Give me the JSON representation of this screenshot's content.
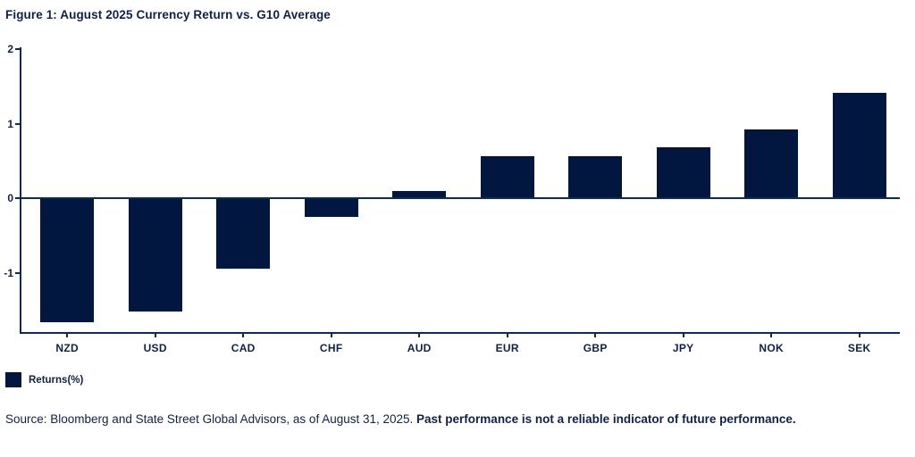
{
  "figure": {
    "title": "Figure 1: August 2025 Currency Return vs. G10 Average"
  },
  "legend": {
    "label": "Returns(%)"
  },
  "footer": {
    "source": "Source: Bloomberg and State Street Global Advisors, as of August 31, 2025. ",
    "disclaimer": "Past performance is not a reliable indicator of future performance."
  },
  "colors": {
    "bar": "#021740",
    "text": "#0f2149",
    "axis": "#0f2a5a"
  },
  "chart_data": {
    "type": "bar",
    "title": "Figure 1: August 2025 Currency Return vs. G10 Average",
    "categories": [
      "NZD",
      "USD",
      "CAD",
      "CHF",
      "AUD",
      "EUR",
      "GBP",
      "JPY",
      "NOK",
      "SEK"
    ],
    "values": [
      -1.66,
      -1.51,
      -0.94,
      -0.25,
      0.1,
      0.57,
      0.57,
      0.68,
      0.93,
      1.41
    ],
    "series_name": "Returns(%)",
    "xlabel": "",
    "ylabel": "",
    "ylim": [
      -1.8,
      2
    ],
    "yticks": [
      2,
      1,
      0,
      -1
    ],
    "grid": false,
    "legend_position": "bottom-left"
  }
}
